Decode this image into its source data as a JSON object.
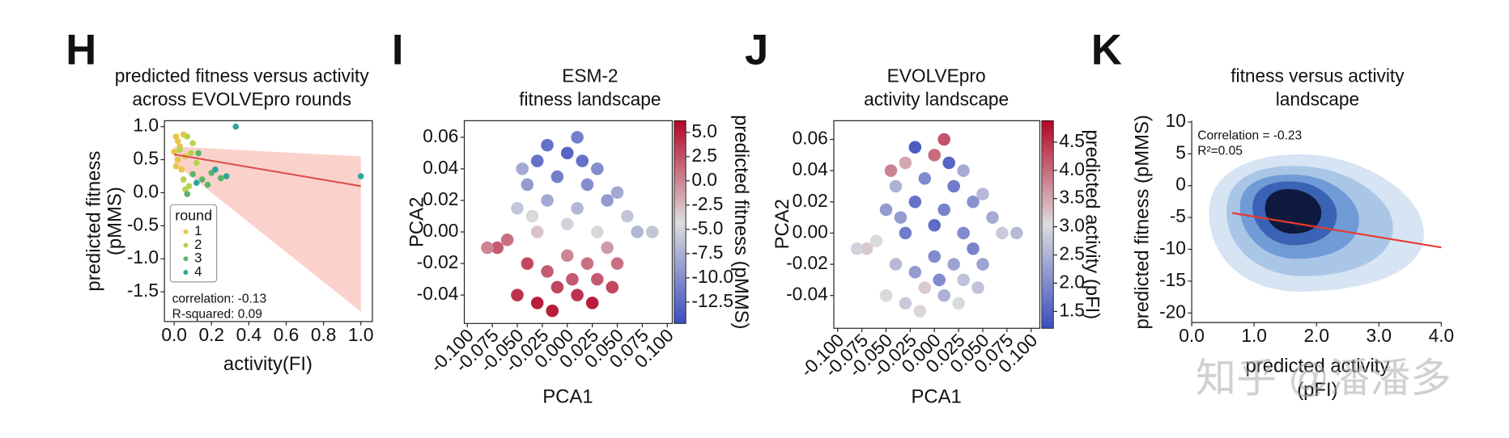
{
  "chart_data": [
    {
      "type": "scatter",
      "panel": "H",
      "title": [
        "predicted fitness versus activity",
        "across EVOLVEpro rounds"
      ],
      "x_label": [
        "activity(FI)"
      ],
      "y_label": [
        "predicted fitness",
        "(pMMS)"
      ],
      "xlim": [
        -0.052,
        1.062
      ],
      "ylim": [
        -1.95,
        1.09
      ],
      "xticks": [
        {
          "value": 0,
          "label": "0.0"
        },
        0.2,
        0.4,
        0.6,
        0.8,
        {
          "value": 1,
          "label": "1.0"
        }
      ],
      "yticks": [
        -1.5,
        {
          "value": -1,
          "label": "-1.0"
        },
        -0.5,
        {
          "value": 0,
          "label": "0.0"
        },
        0.5,
        {
          "value": 1,
          "label": "1.0"
        }
      ],
      "legend_title": "round",
      "series": [
        {
          "name": "1",
          "color": "#e8c547",
          "x": [
            0.01,
            0.02,
            0.03,
            0.0,
            0.05,
            0.02,
            0.04,
            0.06,
            0.01
          ],
          "values": [
            0.85,
            0.78,
            0.7,
            0.62,
            0.88,
            0.5,
            0.35,
            0.55,
            0.4
          ]
        },
        {
          "name": "2",
          "color": "#b5d44c",
          "x": [
            0.03,
            0.07,
            0.1,
            0.05,
            0.08,
            0.12,
            0.06,
            0.09
          ],
          "values": [
            0.65,
            0.85,
            0.75,
            0.2,
            0.1,
            0.45,
            0.05,
            0.6
          ]
        },
        {
          "name": "3",
          "color": "#5cb56a",
          "x": [
            0.1,
            0.15,
            0.2,
            0.25,
            0.13,
            0.07,
            0.18
          ],
          "values": [
            0.28,
            0.2,
            0.3,
            0.22,
            0.6,
            -0.02,
            0.12
          ]
        },
        {
          "name": "4",
          "color": "#2ea59c",
          "x": [
            0.33,
            1.0,
            0.12,
            0.28,
            0.22
          ],
          "values": [
            1.0,
            0.25,
            0.15,
            0.25,
            0.35
          ]
        }
      ],
      "fit_line": {
        "color": "#d9534f",
        "x": [
          0,
          1
        ],
        "values": [
          0.58,
          0.1
        ]
      },
      "fit_band": {
        "color": "#f9c3b9",
        "x": [
          0,
          1
        ],
        "lower": [
          0.45,
          -1.8
        ],
        "upper": [
          0.7,
          0.55
        ]
      },
      "annotations": [
        "correlation: -0.13",
        "R-squared: 0.09"
      ]
    },
    {
      "type": "hexbin",
      "panel": "I",
      "title": [
        "ESM-2",
        "fitness landscape"
      ],
      "x_label": [
        "PCA1"
      ],
      "y_label": [
        "PCA2"
      ],
      "xlim": [
        -0.103,
        0.105
      ],
      "ylim": [
        -0.058,
        0.0705
      ],
      "xticks": [
        {
          "value": -0.1,
          "label": "-0.100"
        },
        -0.075,
        {
          "value": -0.05,
          "label": "-0.050"
        },
        -0.025,
        {
          "value": 0,
          "label": "0.000"
        },
        0.025,
        {
          "value": 0.05,
          "label": "0.050"
        },
        0.075,
        {
          "value": 0.1,
          "label": "0.100"
        }
      ],
      "yticks": [
        -0.04,
        -0.02,
        {
          "value": 0,
          "label": "0.00"
        },
        0.02,
        0.04,
        0.06
      ],
      "colormap": [
        "#3b4cc0",
        "#dddddd",
        "#b40426"
      ],
      "clim": [
        -14.7,
        6.2
      ],
      "colorbar_label": "predicted fitness (pMMS)",
      "colorbar_ticks": [
        -12.5,
        {
          "value": -10,
          "label": "-10.0"
        },
        -7.5,
        {
          "value": -5,
          "label": "-5.0"
        },
        -2.5,
        {
          "value": 0,
          "label": "0.0"
        },
        2.5,
        {
          "value": 5,
          "label": "5.0"
        }
      ],
      "points": {
        "x": [
          -0.05,
          -0.03,
          -0.01,
          0.01,
          0.03,
          0.05,
          -0.04,
          -0.02,
          0,
          0.02,
          0.04,
          -0.06,
          -0.03,
          0,
          0.03,
          0.06,
          -0.05,
          -0.02,
          0.01,
          0.04,
          -0.04,
          -0.01,
          0.02,
          0.05,
          -0.03,
          0,
          0.03,
          -0.07,
          0.07,
          -0.02,
          0.01,
          -0.045,
          0.025,
          0.085,
          -0.08,
          -0.015,
          0.015,
          0.045,
          -0.035,
          0.005
        ],
        "y": [
          -0.04,
          -0.045,
          -0.035,
          -0.04,
          -0.03,
          -0.02,
          -0.02,
          -0.025,
          -0.015,
          -0.02,
          -0.01,
          -0.005,
          0,
          0.005,
          0,
          0.01,
          0.015,
          0.02,
          0.015,
          0.02,
          0.03,
          0.035,
          0.03,
          0.025,
          0.045,
          0.05,
          0.04,
          -0.01,
          0.0,
          0.055,
          0.06,
          0.04,
          -0.045,
          0.0,
          -0.01,
          -0.05,
          0.045,
          -0.035,
          0.01,
          -0.03
        ],
        "values": [
          4,
          5,
          3,
          4,
          2,
          1,
          3,
          2,
          0,
          1,
          -1,
          1,
          -3,
          -5,
          -4,
          -6,
          -6,
          -8,
          -7,
          -9,
          -9,
          -11,
          -10,
          -8,
          -12,
          -13,
          -10,
          2,
          -7,
          -12,
          -11,
          -8,
          5,
          -6,
          0,
          5,
          -12,
          3,
          -4,
          2
        ]
      }
    },
    {
      "type": "hexbin",
      "panel": "J",
      "title": [
        "EVOLVEpro",
        "activity landscape"
      ],
      "x_label": [
        "PCA1"
      ],
      "y_label": [
        "PCA2"
      ],
      "xlim": [
        -0.104,
        0.109
      ],
      "ylim": [
        -0.061,
        0.072
      ],
      "xticks": [
        {
          "value": -0.1,
          "label": "-0.100"
        },
        -0.075,
        {
          "value": -0.05,
          "label": "-0.050"
        },
        -0.025,
        {
          "value": 0,
          "label": "0.000"
        },
        0.025,
        {
          "value": 0.05,
          "label": "0.050"
        },
        0.075,
        {
          "value": 0.1,
          "label": "0.100"
        }
      ],
      "yticks": [
        -0.04,
        -0.02,
        {
          "value": 0,
          "label": "0.00"
        },
        0.02,
        0.04,
        0.06
      ],
      "colormap": [
        "#3b4cc0",
        "#dddddd",
        "#b40426"
      ],
      "clim": [
        1.2,
        4.88
      ],
      "colorbar_label": "predicted activity (pFI)",
      "colorbar_ticks": [
        1.5,
        {
          "value": 2,
          "label": "2.0"
        },
        2.5,
        {
          "value": 3,
          "label": "3.0"
        },
        3.5,
        {
          "value": 4,
          "label": "4.0"
        },
        4.5
      ],
      "points": {
        "x": [
          -0.05,
          -0.03,
          -0.01,
          0.01,
          0.03,
          0.05,
          -0.04,
          -0.02,
          0,
          0.02,
          0.04,
          -0.06,
          -0.03,
          0,
          0.03,
          0.06,
          -0.05,
          -0.02,
          0.01,
          0.04,
          -0.04,
          -0.01,
          0.02,
          0.05,
          -0.03,
          0,
          0.03,
          -0.07,
          0.07,
          -0.02,
          0.01,
          -0.045,
          0.025,
          0.085,
          -0.08,
          -0.015,
          0.015,
          0.045,
          -0.035,
          0.005
        ],
        "y": [
          -0.04,
          -0.045,
          -0.035,
          -0.04,
          -0.03,
          -0.02,
          -0.02,
          -0.025,
          -0.015,
          -0.02,
          -0.01,
          -0.005,
          0,
          0.005,
          0,
          0.01,
          0.015,
          0.02,
          0.015,
          0.02,
          0.03,
          0.035,
          0.03,
          0.025,
          0.045,
          0.05,
          0.04,
          -0.01,
          0.0,
          0.055,
          0.06,
          0.04,
          -0.045,
          0.0,
          -0.01,
          -0.05,
          0.045,
          -0.035,
          0.01,
          -0.03
        ],
        "values": [
          3.0,
          2.8,
          3.2,
          2.5,
          2.7,
          2.3,
          2.6,
          2.2,
          2.0,
          2.3,
          1.9,
          3.0,
          1.8,
          1.6,
          2.0,
          2.4,
          2.2,
          1.7,
          1.9,
          2.1,
          2.5,
          2.0,
          1.8,
          2.6,
          3.5,
          4.0,
          2.4,
          3.2,
          2.8,
          1.4,
          4.2,
          3.8,
          3.0,
          2.6,
          2.9,
          3.1,
          1.5,
          2.7,
          2.2,
          2.0
        ]
      }
    },
    {
      "type": "kde",
      "panel": "K",
      "title": [
        "fitness versus activity",
        "landscape"
      ],
      "x_label": [
        "predicted activity",
        "(pFI)"
      ],
      "y_label": [
        "predicted fitness (pMMS)"
      ],
      "xlim": [
        0,
        4
      ],
      "ylim": [
        -21.5,
        10.2
      ],
      "xticks": [
        {
          "value": 0,
          "label": "0.0"
        },
        {
          "value": 1,
          "label": "1.0"
        },
        {
          "value": 2,
          "label": "2.0"
        },
        {
          "value": 3,
          "label": "3.0"
        },
        {
          "value": 4,
          "label": "4.0"
        }
      ],
      "yticks": [
        -20,
        -15,
        -10,
        -5,
        0,
        5,
        10
      ],
      "fit_line": {
        "color": "#e8392c",
        "x": [
          0.65,
          4.0
        ],
        "values": [
          -4.3,
          -9.7
        ]
      },
      "annotations": [
        "Correlation = -0.23",
        "R²=0.05"
      ]
    }
  ],
  "watermark": "知乎 @潘潘多"
}
